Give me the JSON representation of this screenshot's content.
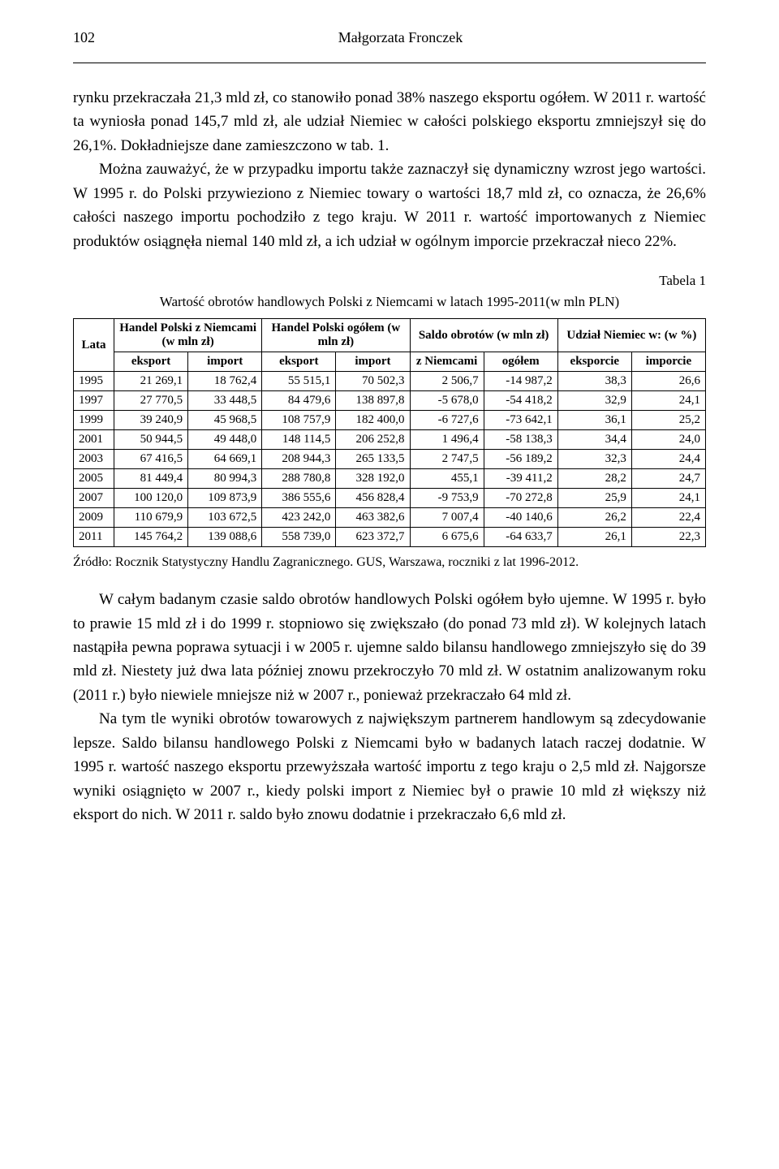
{
  "header": {
    "page_number": "102",
    "author": "Małgorzata Fronczek"
  },
  "paragraphs": {
    "p1": "rynku przekraczała 21,3 mld zł, co stanowiło ponad 38% naszego eksportu ogółem. W 2011 r. wartość ta wyniosła ponad 145,7 mld zł, ale udział Niemiec w całości polskiego eksportu zmniejszył się do 26,1%. Dokładniejsze dane zamieszczono w tab. 1.",
    "p2": "Można zauważyć, że w przypadku importu także zaznaczył się dynamiczny wzrost jego wartości. W 1995 r. do Polski przywieziono z Niemiec towary o wartości 18,7 mld zł, co oznacza, że 26,6% całości naszego importu pochodziło z tego kraju. W 2011 r. wartość importowanych z Niemiec produktów osiągnęła niemal 140 mld zł, a ich udział w ogólnym imporcie przekraczał nieco 22%.",
    "p3": "W całym badanym czasie saldo obrotów handlowych Polski ogółem było ujemne. W 1995 r. było to prawie 15 mld zł i do 1999 r. stopniowo się zwiększało (do ponad 73 mld zł). W kolejnych latach nastąpiła pewna poprawa sytuacji i w 2005 r. ujemne saldo bilansu handlowego zmniejszyło się do 39 mld zł. Niestety już dwa lata później znowu przekroczyło 70 mld zł. W ostatnim analizowanym roku (2011 r.) było niewiele mniejsze niż w 2007 r., ponieważ przekraczało 64 mld zł.",
    "p4": "Na tym tle wyniki obrotów towarowych z największym partnerem handlowym są zdecydowanie lepsze. Saldo bilansu handlowego Polski z Niemcami było w badanych latach raczej dodatnie. W 1995 r. wartość naszego eksportu przewyższała wartość importu z tego kraju o 2,5 mld zł. Najgorsze wyniki osiągnięto w 2007 r., kiedy polski import z Niemiec był o prawie 10 mld zł większy niż eksport do nich. W 2011 r. saldo było znowu dodatnie i przekraczało 6,6 mld zł."
  },
  "table": {
    "label": "Tabela 1",
    "caption": "Wartość obrotów handlowych Polski z Niemcami w latach 1995-2011(w mln PLN)",
    "head": {
      "lata": "Lata",
      "g1": "Handel Polski z Niemcami (w mln zł)",
      "g2": "Handel Polski ogółem (w mln zł)",
      "g3": "Saldo obrotów (w mln zł)",
      "g4": "Udział Niemiec w: (w %)",
      "sub": {
        "eksport": "eksport",
        "import": "import",
        "zniem": "z Niemcami",
        "ogolem": "ogółem",
        "eksporcie": "eksporcie",
        "imporcie": "imporcie"
      }
    },
    "rows": [
      {
        "year": "1995",
        "a": "21 269,1",
        "b": "18 762,4",
        "c": "55 515,1",
        "d": "70 502,3",
        "e": "2 506,7",
        "f": "-14 987,2",
        "g": "38,3",
        "h": "26,6"
      },
      {
        "year": "1997",
        "a": "27 770,5",
        "b": "33 448,5",
        "c": "84 479,6",
        "d": "138 897,8",
        "e": "-5 678,0",
        "f": "-54 418,2",
        "g": "32,9",
        "h": "24,1"
      },
      {
        "year": "1999",
        "a": "39 240,9",
        "b": "45 968,5",
        "c": "108 757,9",
        "d": "182 400,0",
        "e": "-6 727,6",
        "f": "-73 642,1",
        "g": "36,1",
        "h": "25,2"
      },
      {
        "year": "2001",
        "a": "50 944,5",
        "b": "49 448,0",
        "c": "148 114,5",
        "d": "206 252,8",
        "e": "1 496,4",
        "f": "-58 138,3",
        "g": "34,4",
        "h": "24,0"
      },
      {
        "year": "2003",
        "a": "67 416,5",
        "b": "64 669,1",
        "c": "208 944,3",
        "d": "265 133,5",
        "e": "2 747,5",
        "f": "-56 189,2",
        "g": "32,3",
        "h": "24,4"
      },
      {
        "year": "2005",
        "a": "81 449,4",
        "b": "80 994,3",
        "c": "288 780,8",
        "d": "328 192,0",
        "e": "455,1",
        "f": "-39 411,2",
        "g": "28,2",
        "h": "24,7"
      },
      {
        "year": "2007",
        "a": "100 120,0",
        "b": "109 873,9",
        "c": "386 555,6",
        "d": "456 828,4",
        "e": "-9 753,9",
        "f": "-70 272,8",
        "g": "25,9",
        "h": "24,1"
      },
      {
        "year": "2009",
        "a": "110 679,9",
        "b": "103 672,5",
        "c": "423 242,0",
        "d": "463 382,6",
        "e": "7 007,4",
        "f": "-40 140,6",
        "g": "26,2",
        "h": "22,4"
      },
      {
        "year": "2011",
        "a": "145 764,2",
        "b": "139 088,6",
        "c": "558 739,0",
        "d": "623 372,7",
        "e": "6 675,6",
        "f": "-64 633,7",
        "g": "26,1",
        "h": "22,3"
      }
    ],
    "source": "Źródło: Rocznik Statystyczny Handlu Zagranicznego. GUS, Warszawa, roczniki z lat 1996-2012."
  }
}
